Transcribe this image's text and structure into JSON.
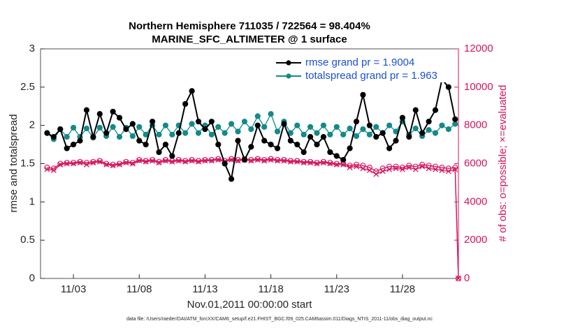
{
  "chart_data": {
    "type": "line",
    "title": "Northern Hemisphere 711035 / 722564 = 98.404%",
    "subtitle": "MARINE_SFC_ALTIMETER @ 1 surface",
    "ylabel": "rmse and totalspread",
    "y2label": "# of obs: o=possible; ×=evaluated",
    "xlabel": "Nov.01,2011 00:00:00 start",
    "footer": "data file: /Users/raeder/DAI/ATM_forcXX/CAM6_setup/f.e21.FHIST_BGC.f09_025.CAM6assim.011/Diags_NTrS_2011-11/obs_diag_output.nc",
    "legend": "upper right",
    "xlim": [
      -0.5,
      31.25
    ],
    "xticks": [
      {
        "value": 2,
        "label": "11/03"
      },
      {
        "value": 7,
        "label": "11/08"
      },
      {
        "value": 12,
        "label": "11/13"
      },
      {
        "value": 17,
        "label": "11/18"
      },
      {
        "value": 22,
        "label": "11/23"
      },
      {
        "value": 27,
        "label": "11/28"
      }
    ],
    "ylim": [
      0,
      3
    ],
    "yticks": [
      0,
      0.5,
      1,
      1.5,
      2,
      2.5,
      3
    ],
    "y2lim": [
      0,
      12000
    ],
    "y2ticks": [
      0,
      2000,
      4000,
      6000,
      8000,
      10000,
      12000
    ],
    "x": [
      0,
      0.5,
      1,
      1.5,
      2,
      2.5,
      3,
      3.5,
      4,
      4.5,
      5,
      5.5,
      6,
      6.5,
      7,
      7.5,
      8,
      8.5,
      9,
      9.5,
      10,
      10.5,
      11,
      11.5,
      12,
      12.5,
      13,
      13.5,
      14,
      14.5,
      15,
      15.5,
      16,
      16.5,
      17,
      17.5,
      18,
      18.5,
      19,
      19.5,
      20,
      20.5,
      21,
      21.5,
      22,
      22.5,
      23,
      23.5,
      24,
      24.5,
      25,
      25.5,
      26,
      26.5,
      27,
      27.5,
      28,
      28.5,
      29,
      29.5,
      30,
      30.5,
      31,
      31.25
    ],
    "series": [
      {
        "name": "rmse grand pr = 1.9004",
        "color": "#000000",
        "marker": "dot",
        "values": [
          1.9,
          1.85,
          1.95,
          1.7,
          1.75,
          1.8,
          2.2,
          1.85,
          2.15,
          1.9,
          2.18,
          2.1,
          1.95,
          2.02,
          1.8,
          1.75,
          2.05,
          1.65,
          1.75,
          1.6,
          1.9,
          2.28,
          2.45,
          2.05,
          1.95,
          2.05,
          1.75,
          1.5,
          1.3,
          1.8,
          1.55,
          1.72,
          2.0,
          1.8,
          1.75,
          1.7,
          2.02,
          1.8,
          1.75,
          1.65,
          1.85,
          1.75,
          1.85,
          1.65,
          1.6,
          1.55,
          1.7,
          2.05,
          2.4,
          2.0,
          1.85,
          1.9,
          1.7,
          1.8,
          2.1,
          1.85,
          2.2,
          1.9,
          2.05,
          2.2,
          2.6,
          2.5,
          2.08,
          null
        ]
      },
      {
        "name": "totalspread grand pr = 1.963",
        "color": "#138a8a",
        "marker": "dot",
        "values": [
          1.9,
          1.82,
          1.95,
          1.85,
          1.97,
          1.85,
          1.96,
          1.84,
          1.97,
          1.86,
          1.98,
          1.85,
          1.97,
          1.86,
          1.98,
          1.88,
          2.0,
          1.88,
          2.0,
          1.88,
          2.0,
          1.9,
          2.02,
          1.9,
          2.0,
          1.88,
          1.98,
          1.9,
          2.02,
          1.92,
          2.05,
          1.95,
          2.12,
          1.98,
          2.15,
          1.92,
          2.05,
          1.9,
          2.0,
          1.88,
          1.98,
          1.9,
          2.0,
          1.88,
          1.98,
          1.88,
          1.96,
          1.86,
          1.95,
          1.88,
          1.98,
          1.9,
          2.0,
          1.92,
          2.05,
          1.88,
          1.96,
          1.86,
          1.94,
          1.9,
          2.0,
          1.95,
          2.02,
          null
        ]
      },
      {
        "color": "#d6145e",
        "marker": "circle",
        "axis": "y2",
        "values": [
          5800,
          5750,
          6000,
          6050,
          6050,
          6100,
          6050,
          6100,
          6150,
          6000,
          5950,
          6000,
          6100,
          6050,
          6200,
          6150,
          6200,
          6100,
          6200,
          6150,
          6200,
          6150,
          6200,
          6150,
          6200,
          6200,
          6250,
          6150,
          6250,
          6200,
          6250,
          6200,
          6250,
          6200,
          6250,
          6200,
          6200,
          6150,
          6150,
          6100,
          6100,
          6050,
          6100,
          6050,
          6000,
          6000,
          5900,
          5950,
          5900,
          5800,
          5600,
          5750,
          5850,
          5850,
          5800,
          5900,
          5850,
          5950,
          5900,
          5850,
          5800,
          5750,
          5800,
          0
        ]
      },
      {
        "color": "#d6145e",
        "marker": "cross",
        "axis": "y2",
        "values": [
          5700,
          5650,
          5950,
          6000,
          6000,
          6050,
          5950,
          6050,
          6100,
          5950,
          5900,
          5950,
          6050,
          6000,
          6150,
          6100,
          6150,
          6050,
          6150,
          6100,
          6150,
          6100,
          6150,
          6100,
          6150,
          6150,
          6200,
          6100,
          6200,
          6150,
          6200,
          6150,
          6200,
          6150,
          6200,
          6150,
          6150,
          6100,
          6100,
          6050,
          6050,
          6000,
          6050,
          6000,
          5950,
          5950,
          5800,
          5850,
          5750,
          5650,
          5450,
          5600,
          5700,
          5750,
          5700,
          5800,
          5700,
          5850,
          5750,
          5700,
          5650,
          5600,
          5700,
          0
        ]
      }
    ]
  }
}
